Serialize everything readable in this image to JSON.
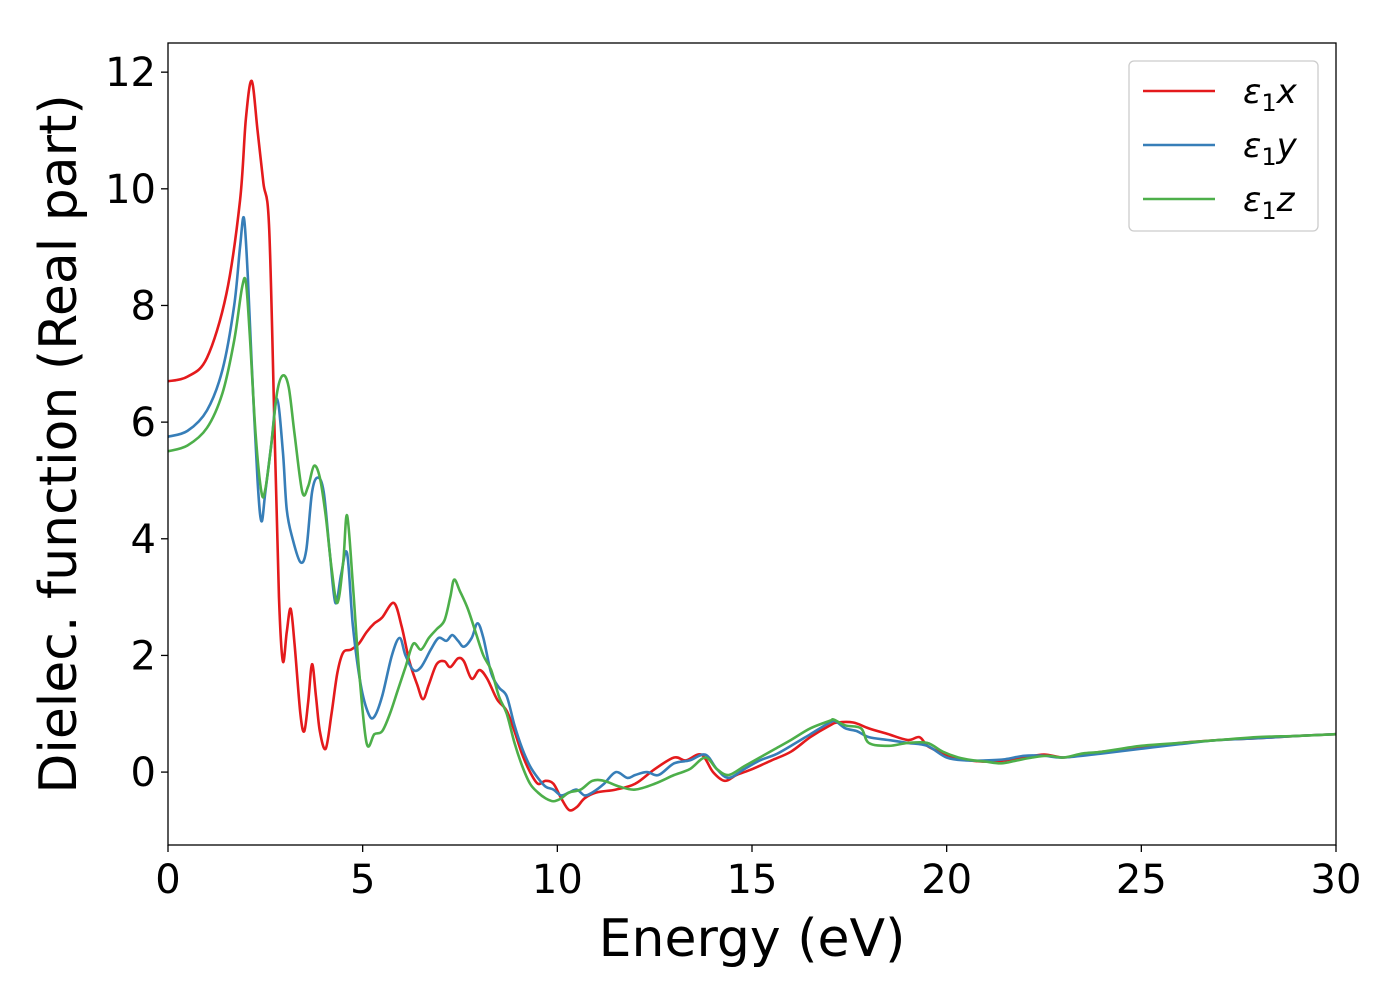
{
  "chart_data": {
    "type": "line",
    "title": "",
    "xlabel": "Energy (eV)",
    "ylabel": "Dielec. function (Real part)",
    "xlim": [
      0,
      30
    ],
    "ylim": [
      -1.25,
      12.5
    ],
    "xticks": [
      0,
      5,
      10,
      15,
      20,
      25,
      30
    ],
    "xtick_labels": [
      "0",
      "5",
      "10",
      "15",
      "20",
      "25",
      "30"
    ],
    "yticks": [
      0,
      2,
      4,
      6,
      8,
      10,
      12
    ],
    "ytick_labels": [
      "0",
      "2",
      "4",
      "6",
      "8",
      "10",
      "12"
    ],
    "grid": false,
    "legend_position": "top-right",
    "series": [
      {
        "name": "ε1x",
        "legend_main": "ε",
        "legend_sub": "1",
        "legend_var": "x",
        "color": "#e41a1c",
        "points": [
          [
            0,
            6.7
          ],
          [
            0.5,
            6.78
          ],
          [
            1.0,
            7.1
          ],
          [
            1.5,
            8.2
          ],
          [
            1.85,
            9.8
          ],
          [
            2.0,
            11.2
          ],
          [
            2.15,
            11.85
          ],
          [
            2.3,
            11.0
          ],
          [
            2.45,
            10.1
          ],
          [
            2.6,
            9.3
          ],
          [
            2.75,
            5.5
          ],
          [
            2.85,
            3.0
          ],
          [
            2.95,
            1.9
          ],
          [
            3.05,
            2.4
          ],
          [
            3.15,
            2.8
          ],
          [
            3.25,
            2.2
          ],
          [
            3.4,
            1.0
          ],
          [
            3.5,
            0.7
          ],
          [
            3.6,
            1.2
          ],
          [
            3.7,
            1.85
          ],
          [
            3.8,
            1.3
          ],
          [
            3.9,
            0.7
          ],
          [
            4.05,
            0.4
          ],
          [
            4.2,
            1.0
          ],
          [
            4.35,
            1.7
          ],
          [
            4.5,
            2.05
          ],
          [
            4.7,
            2.1
          ],
          [
            4.9,
            2.2
          ],
          [
            5.1,
            2.4
          ],
          [
            5.3,
            2.55
          ],
          [
            5.5,
            2.65
          ],
          [
            5.8,
            2.9
          ],
          [
            6.0,
            2.5
          ],
          [
            6.2,
            1.9
          ],
          [
            6.4,
            1.5
          ],
          [
            6.55,
            1.25
          ],
          [
            6.7,
            1.5
          ],
          [
            6.9,
            1.85
          ],
          [
            7.1,
            1.9
          ],
          [
            7.25,
            1.8
          ],
          [
            7.45,
            1.95
          ],
          [
            7.6,
            1.9
          ],
          [
            7.8,
            1.6
          ],
          [
            8.0,
            1.75
          ],
          [
            8.2,
            1.6
          ],
          [
            8.45,
            1.25
          ],
          [
            8.7,
            1.05
          ],
          [
            8.9,
            0.7
          ],
          [
            9.1,
            0.3
          ],
          [
            9.3,
            0.0
          ],
          [
            9.5,
            -0.2
          ],
          [
            9.7,
            -0.15
          ],
          [
            9.9,
            -0.2
          ],
          [
            10.1,
            -0.45
          ],
          [
            10.3,
            -0.65
          ],
          [
            10.5,
            -0.6
          ],
          [
            10.7,
            -0.45
          ],
          [
            11.0,
            -0.35
          ],
          [
            11.5,
            -0.3
          ],
          [
            12.0,
            -0.2
          ],
          [
            12.5,
            0.05
          ],
          [
            13.0,
            0.25
          ],
          [
            13.3,
            0.2
          ],
          [
            13.7,
            0.3
          ],
          [
            14.0,
            0.0
          ],
          [
            14.3,
            -0.15
          ],
          [
            14.6,
            -0.05
          ],
          [
            15.0,
            0.05
          ],
          [
            15.5,
            0.2
          ],
          [
            16.0,
            0.35
          ],
          [
            16.5,
            0.6
          ],
          [
            17.0,
            0.8
          ],
          [
            17.2,
            0.85
          ],
          [
            17.6,
            0.85
          ],
          [
            18.0,
            0.75
          ],
          [
            18.5,
            0.65
          ],
          [
            19.0,
            0.55
          ],
          [
            19.3,
            0.6
          ],
          [
            19.5,
            0.45
          ],
          [
            19.8,
            0.35
          ],
          [
            20.2,
            0.25
          ],
          [
            20.6,
            0.2
          ],
          [
            21.0,
            0.18
          ],
          [
            21.5,
            0.2
          ],
          [
            22.0,
            0.25
          ],
          [
            22.5,
            0.3
          ],
          [
            23.0,
            0.25
          ],
          [
            23.5,
            0.3
          ],
          [
            24.0,
            0.35
          ],
          [
            25.0,
            0.42
          ],
          [
            26.0,
            0.5
          ],
          [
            27.0,
            0.55
          ],
          [
            28.0,
            0.58
          ],
          [
            29.0,
            0.62
          ],
          [
            30.0,
            0.65
          ]
        ]
      },
      {
        "name": "ε1y",
        "legend_main": "ε",
        "legend_sub": "1",
        "legend_var": "y",
        "color": "#377eb8",
        "points": [
          [
            0,
            5.75
          ],
          [
            0.5,
            5.85
          ],
          [
            1.0,
            6.2
          ],
          [
            1.4,
            6.9
          ],
          [
            1.7,
            8.0
          ],
          [
            1.85,
            9.0
          ],
          [
            1.95,
            9.5
          ],
          [
            2.05,
            8.5
          ],
          [
            2.15,
            7.0
          ],
          [
            2.3,
            5.0
          ],
          [
            2.4,
            4.3
          ],
          [
            2.5,
            4.8
          ],
          [
            2.65,
            5.6
          ],
          [
            2.8,
            6.4
          ],
          [
            2.95,
            5.5
          ],
          [
            3.05,
            4.5
          ],
          [
            3.2,
            4.0
          ],
          [
            3.4,
            3.6
          ],
          [
            3.55,
            3.8
          ],
          [
            3.7,
            4.8
          ],
          [
            3.85,
            5.05
          ],
          [
            4.0,
            4.8
          ],
          [
            4.15,
            3.8
          ],
          [
            4.3,
            2.9
          ],
          [
            4.45,
            3.4
          ],
          [
            4.6,
            3.75
          ],
          [
            4.75,
            2.5
          ],
          [
            4.95,
            1.5
          ],
          [
            5.15,
            1.0
          ],
          [
            5.3,
            0.95
          ],
          [
            5.5,
            1.3
          ],
          [
            5.75,
            2.0
          ],
          [
            5.95,
            2.3
          ],
          [
            6.1,
            2.0
          ],
          [
            6.3,
            1.75
          ],
          [
            6.5,
            1.8
          ],
          [
            6.75,
            2.1
          ],
          [
            6.95,
            2.3
          ],
          [
            7.15,
            2.25
          ],
          [
            7.3,
            2.35
          ],
          [
            7.45,
            2.25
          ],
          [
            7.6,
            2.15
          ],
          [
            7.8,
            2.3
          ],
          [
            7.95,
            2.55
          ],
          [
            8.1,
            2.3
          ],
          [
            8.3,
            1.7
          ],
          [
            8.5,
            1.45
          ],
          [
            8.7,
            1.3
          ],
          [
            8.9,
            0.8
          ],
          [
            9.1,
            0.4
          ],
          [
            9.3,
            0.1
          ],
          [
            9.5,
            -0.1
          ],
          [
            9.7,
            -0.25
          ],
          [
            9.9,
            -0.3
          ],
          [
            10.1,
            -0.4
          ],
          [
            10.3,
            -0.35
          ],
          [
            10.5,
            -0.3
          ],
          [
            10.7,
            -0.4
          ],
          [
            10.9,
            -0.35
          ],
          [
            11.2,
            -0.2
          ],
          [
            11.5,
            0.0
          ],
          [
            11.8,
            -0.1
          ],
          [
            12.0,
            -0.05
          ],
          [
            12.3,
            0.0
          ],
          [
            12.6,
            -0.05
          ],
          [
            13.0,
            0.15
          ],
          [
            13.4,
            0.2
          ],
          [
            13.8,
            0.3
          ],
          [
            14.1,
            0.05
          ],
          [
            14.4,
            -0.1
          ],
          [
            14.8,
            0.05
          ],
          [
            15.2,
            0.2
          ],
          [
            15.6,
            0.3
          ],
          [
            16.0,
            0.45
          ],
          [
            16.5,
            0.65
          ],
          [
            17.0,
            0.85
          ],
          [
            17.15,
            0.87
          ],
          [
            17.4,
            0.75
          ],
          [
            17.7,
            0.7
          ],
          [
            18.0,
            0.6
          ],
          [
            18.5,
            0.55
          ],
          [
            19.0,
            0.5
          ],
          [
            19.5,
            0.45
          ],
          [
            20.0,
            0.25
          ],
          [
            20.5,
            0.2
          ],
          [
            21.0,
            0.2
          ],
          [
            21.5,
            0.22
          ],
          [
            22.0,
            0.28
          ],
          [
            22.5,
            0.28
          ],
          [
            23.0,
            0.25
          ],
          [
            24.0,
            0.32
          ],
          [
            25.0,
            0.4
          ],
          [
            26.0,
            0.48
          ],
          [
            27.0,
            0.55
          ],
          [
            28.0,
            0.58
          ],
          [
            29.0,
            0.62
          ],
          [
            30.0,
            0.65
          ]
        ]
      },
      {
        "name": "ε1z",
        "legend_main": "ε",
        "legend_sub": "1",
        "legend_var": "z",
        "color": "#4daf4a",
        "points": [
          [
            0,
            5.5
          ],
          [
            0.5,
            5.6
          ],
          [
            1.0,
            5.9
          ],
          [
            1.4,
            6.5
          ],
          [
            1.7,
            7.4
          ],
          [
            1.9,
            8.3
          ],
          [
            2.0,
            8.4
          ],
          [
            2.1,
            7.5
          ],
          [
            2.25,
            5.8
          ],
          [
            2.4,
            4.8
          ],
          [
            2.5,
            4.85
          ],
          [
            2.65,
            5.6
          ],
          [
            2.8,
            6.5
          ],
          [
            2.95,
            6.8
          ],
          [
            3.1,
            6.6
          ],
          [
            3.25,
            5.8
          ],
          [
            3.45,
            4.8
          ],
          [
            3.6,
            4.9
          ],
          [
            3.75,
            5.25
          ],
          [
            3.9,
            5.05
          ],
          [
            4.05,
            4.4
          ],
          [
            4.2,
            3.5
          ],
          [
            4.35,
            2.9
          ],
          [
            4.5,
            3.6
          ],
          [
            4.6,
            4.4
          ],
          [
            4.75,
            3.2
          ],
          [
            4.9,
            1.8
          ],
          [
            5.1,
            0.5
          ],
          [
            5.3,
            0.65
          ],
          [
            5.5,
            0.7
          ],
          [
            5.7,
            1.0
          ],
          [
            5.9,
            1.4
          ],
          [
            6.1,
            1.8
          ],
          [
            6.3,
            2.2
          ],
          [
            6.5,
            2.1
          ],
          [
            6.7,
            2.3
          ],
          [
            6.9,
            2.45
          ],
          [
            7.1,
            2.6
          ],
          [
            7.25,
            3.0
          ],
          [
            7.35,
            3.3
          ],
          [
            7.5,
            3.1
          ],
          [
            7.7,
            2.8
          ],
          [
            7.9,
            2.4
          ],
          [
            8.1,
            2.0
          ],
          [
            8.3,
            1.75
          ],
          [
            8.5,
            1.3
          ],
          [
            8.7,
            1.0
          ],
          [
            8.9,
            0.5
          ],
          [
            9.1,
            0.1
          ],
          [
            9.3,
            -0.2
          ],
          [
            9.5,
            -0.35
          ],
          [
            9.7,
            -0.45
          ],
          [
            9.9,
            -0.5
          ],
          [
            10.1,
            -0.45
          ],
          [
            10.3,
            -0.35
          ],
          [
            10.6,
            -0.3
          ],
          [
            10.9,
            -0.15
          ],
          [
            11.2,
            -0.15
          ],
          [
            11.6,
            -0.25
          ],
          [
            12.0,
            -0.3
          ],
          [
            12.5,
            -0.2
          ],
          [
            13.0,
            -0.05
          ],
          [
            13.4,
            0.05
          ],
          [
            13.8,
            0.25
          ],
          [
            14.1,
            0.05
          ],
          [
            14.4,
            -0.05
          ],
          [
            14.8,
            0.1
          ],
          [
            15.2,
            0.25
          ],
          [
            15.6,
            0.4
          ],
          [
            16.0,
            0.55
          ],
          [
            16.5,
            0.75
          ],
          [
            17.0,
            0.88
          ],
          [
            17.1,
            0.9
          ],
          [
            17.4,
            0.8
          ],
          [
            17.8,
            0.75
          ],
          [
            18.0,
            0.5
          ],
          [
            18.5,
            0.45
          ],
          [
            19.0,
            0.5
          ],
          [
            19.5,
            0.5
          ],
          [
            19.9,
            0.35
          ],
          [
            20.3,
            0.25
          ],
          [
            20.7,
            0.2
          ],
          [
            21.0,
            0.18
          ],
          [
            21.4,
            0.15
          ],
          [
            21.8,
            0.2
          ],
          [
            22.2,
            0.25
          ],
          [
            22.6,
            0.28
          ],
          [
            23.0,
            0.25
          ],
          [
            23.5,
            0.32
          ],
          [
            24.0,
            0.35
          ],
          [
            25.0,
            0.45
          ],
          [
            26.0,
            0.5
          ],
          [
            27.0,
            0.55
          ],
          [
            28.0,
            0.6
          ],
          [
            29.0,
            0.62
          ],
          [
            30.0,
            0.65
          ]
        ]
      }
    ]
  }
}
